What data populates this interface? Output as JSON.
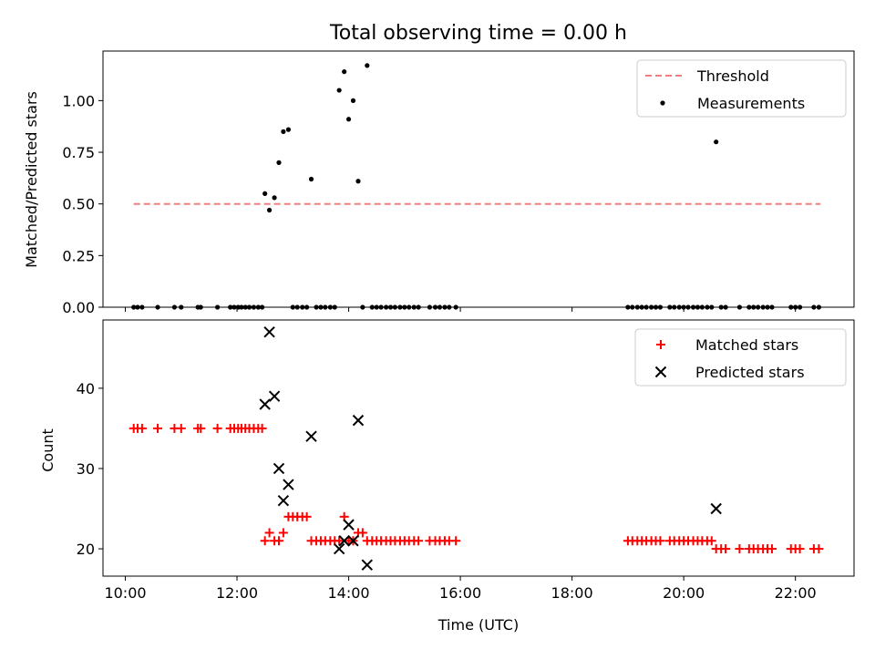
{
  "chart_data": [
    {
      "type": "scatter",
      "title": "Total observing time = 0.00 h",
      "xlabel": "",
      "ylabel": "Matched/Predicted stars",
      "xlim": [
        9.6,
        23.05
      ],
      "ylim": [
        0,
        1.24
      ],
      "yticks": [
        0,
        0.25,
        0.5,
        0.75,
        1.0
      ],
      "ytick_labels": [
        "0.00",
        "0.25",
        "0.50",
        "0.75",
        "1.00"
      ],
      "xticks": [
        10,
        12,
        14,
        16,
        18,
        20,
        22
      ],
      "legend": {
        "placement": "upper-right",
        "entries": [
          "Threshold",
          "Measurements"
        ]
      },
      "threshold": {
        "name": "Threshold",
        "y": 0.5,
        "x_start": 10.15,
        "x_end": 22.45,
        "color": "#f08080"
      },
      "series": [
        {
          "name": "Measurements",
          "color": "#000000",
          "points": [
            [
              12.5,
              0.55
            ],
            [
              12.58,
              0.47
            ],
            [
              12.67,
              0.53
            ],
            [
              12.75,
              0.7
            ],
            [
              12.83,
              0.85
            ],
            [
              12.92,
              0.86
            ],
            [
              13.33,
              0.62
            ],
            [
              13.83,
              1.05
            ],
            [
              13.92,
              1.14
            ],
            [
              14.0,
              0.91
            ],
            [
              14.08,
              1.0
            ],
            [
              14.17,
              0.61
            ],
            [
              14.33,
              1.17
            ],
            [
              20.58,
              0.8
            ],
            [
              10.15,
              0.0
            ],
            [
              10.22,
              0.0
            ],
            [
              10.3,
              0.0
            ],
            [
              10.58,
              0.0
            ],
            [
              10.88,
              0.0
            ],
            [
              11.0,
              0.0
            ],
            [
              11.3,
              0.0
            ],
            [
              11.35,
              0.0
            ],
            [
              11.65,
              0.0
            ],
            [
              11.88,
              0.0
            ],
            [
              11.95,
              0.0
            ],
            [
              12.02,
              0.0
            ],
            [
              12.08,
              0.0
            ],
            [
              12.15,
              0.0
            ],
            [
              12.22,
              0.0
            ],
            [
              12.3,
              0.0
            ],
            [
              12.38,
              0.0
            ],
            [
              12.45,
              0.0
            ],
            [
              13.0,
              0.0
            ],
            [
              13.08,
              0.0
            ],
            [
              13.17,
              0.0
            ],
            [
              13.25,
              0.0
            ],
            [
              13.42,
              0.0
            ],
            [
              13.5,
              0.0
            ],
            [
              13.58,
              0.0
            ],
            [
              13.67,
              0.0
            ],
            [
              13.75,
              0.0
            ],
            [
              14.25,
              0.0
            ],
            [
              14.42,
              0.0
            ],
            [
              14.5,
              0.0
            ],
            [
              14.58,
              0.0
            ],
            [
              14.67,
              0.0
            ],
            [
              14.75,
              0.0
            ],
            [
              14.83,
              0.0
            ],
            [
              14.92,
              0.0
            ],
            [
              15.0,
              0.0
            ],
            [
              15.08,
              0.0
            ],
            [
              15.17,
              0.0
            ],
            [
              15.25,
              0.0
            ],
            [
              15.45,
              0.0
            ],
            [
              15.55,
              0.0
            ],
            [
              15.63,
              0.0
            ],
            [
              15.72,
              0.0
            ],
            [
              15.8,
              0.0
            ],
            [
              15.92,
              0.0
            ],
            [
              19.0,
              0.0
            ],
            [
              19.08,
              0.0
            ],
            [
              19.17,
              0.0
            ],
            [
              19.25,
              0.0
            ],
            [
              19.33,
              0.0
            ],
            [
              19.42,
              0.0
            ],
            [
              19.5,
              0.0
            ],
            [
              19.58,
              0.0
            ],
            [
              19.75,
              0.0
            ],
            [
              19.83,
              0.0
            ],
            [
              19.92,
              0.0
            ],
            [
              20.0,
              0.0
            ],
            [
              20.08,
              0.0
            ],
            [
              20.17,
              0.0
            ],
            [
              20.25,
              0.0
            ],
            [
              20.33,
              0.0
            ],
            [
              20.42,
              0.0
            ],
            [
              20.5,
              0.0
            ],
            [
              20.67,
              0.0
            ],
            [
              20.75,
              0.0
            ],
            [
              21.0,
              0.0
            ],
            [
              21.17,
              0.0
            ],
            [
              21.25,
              0.0
            ],
            [
              21.33,
              0.0
            ],
            [
              21.42,
              0.0
            ],
            [
              21.5,
              0.0
            ],
            [
              21.58,
              0.0
            ],
            [
              21.92,
              0.0
            ],
            [
              22.0,
              0.0
            ],
            [
              22.08,
              0.0
            ],
            [
              22.33,
              0.0
            ],
            [
              22.42,
              0.0
            ]
          ]
        }
      ]
    },
    {
      "type": "scatter",
      "title": "",
      "xlabel": "Time (UTC)",
      "ylabel": "Count",
      "xlim": [
        9.6,
        23.05
      ],
      "ylim": [
        16.6,
        48.5
      ],
      "yticks": [
        20,
        30,
        40
      ],
      "ytick_labels": [
        "20",
        "30",
        "40"
      ],
      "xticks": [
        10,
        12,
        14,
        16,
        18,
        20,
        22
      ],
      "xtick_labels": [
        "10:00",
        "12:00",
        "14:00",
        "16:00",
        "18:00",
        "20:00",
        "22:00"
      ],
      "legend": {
        "placement": "upper-right",
        "entries": [
          "Matched stars",
          "Predicted stars"
        ]
      },
      "series": [
        {
          "name": "Matched stars",
          "marker": "plus",
          "color": "#ff0000",
          "points": [
            [
              10.15,
              35
            ],
            [
              10.22,
              35
            ],
            [
              10.3,
              35
            ],
            [
              10.58,
              35
            ],
            [
              10.88,
              35
            ],
            [
              11.0,
              35
            ],
            [
              11.3,
              35
            ],
            [
              11.35,
              35
            ],
            [
              11.65,
              35
            ],
            [
              11.88,
              35
            ],
            [
              11.95,
              35
            ],
            [
              12.02,
              35
            ],
            [
              12.08,
              35
            ],
            [
              12.15,
              35
            ],
            [
              12.22,
              35
            ],
            [
              12.3,
              35
            ],
            [
              12.38,
              35
            ],
            [
              12.45,
              35
            ],
            [
              12.5,
              21
            ],
            [
              12.58,
              22
            ],
            [
              12.67,
              21
            ],
            [
              12.75,
              21
            ],
            [
              12.83,
              22
            ],
            [
              12.92,
              24
            ],
            [
              13.0,
              24
            ],
            [
              13.08,
              24
            ],
            [
              13.17,
              24
            ],
            [
              13.25,
              24
            ],
            [
              13.33,
              21
            ],
            [
              13.42,
              21
            ],
            [
              13.5,
              21
            ],
            [
              13.58,
              21
            ],
            [
              13.67,
              21
            ],
            [
              13.75,
              21
            ],
            [
              13.83,
              21
            ],
            [
              13.92,
              24
            ],
            [
              14.0,
              21
            ],
            [
              14.08,
              21
            ],
            [
              14.17,
              22
            ],
            [
              14.25,
              22
            ],
            [
              14.33,
              21
            ],
            [
              14.42,
              21
            ],
            [
              14.5,
              21
            ],
            [
              14.58,
              21
            ],
            [
              14.67,
              21
            ],
            [
              14.75,
              21
            ],
            [
              14.83,
              21
            ],
            [
              14.92,
              21
            ],
            [
              15.0,
              21
            ],
            [
              15.08,
              21
            ],
            [
              15.17,
              21
            ],
            [
              15.25,
              21
            ],
            [
              15.45,
              21
            ],
            [
              15.55,
              21
            ],
            [
              15.63,
              21
            ],
            [
              15.72,
              21
            ],
            [
              15.8,
              21
            ],
            [
              15.92,
              21
            ],
            [
              19.0,
              21
            ],
            [
              19.08,
              21
            ],
            [
              19.17,
              21
            ],
            [
              19.25,
              21
            ],
            [
              19.33,
              21
            ],
            [
              19.42,
              21
            ],
            [
              19.5,
              21
            ],
            [
              19.58,
              21
            ],
            [
              19.75,
              21
            ],
            [
              19.83,
              21
            ],
            [
              19.92,
              21
            ],
            [
              20.0,
              21
            ],
            [
              20.08,
              21
            ],
            [
              20.17,
              21
            ],
            [
              20.25,
              21
            ],
            [
              20.33,
              21
            ],
            [
              20.42,
              21
            ],
            [
              20.5,
              21
            ],
            [
              20.58,
              20
            ],
            [
              20.67,
              20
            ],
            [
              20.75,
              20
            ],
            [
              21.0,
              20
            ],
            [
              21.17,
              20
            ],
            [
              21.25,
              20
            ],
            [
              21.33,
              20
            ],
            [
              21.42,
              20
            ],
            [
              21.5,
              20
            ],
            [
              21.58,
              20
            ],
            [
              21.92,
              20
            ],
            [
              22.0,
              20
            ],
            [
              22.08,
              20
            ],
            [
              22.33,
              20
            ],
            [
              22.42,
              20
            ]
          ]
        },
        {
          "name": "Predicted stars",
          "marker": "x",
          "color": "#000000",
          "points": [
            [
              12.5,
              38
            ],
            [
              12.58,
              47
            ],
            [
              12.67,
              39
            ],
            [
              12.75,
              30
            ],
            [
              12.83,
              26
            ],
            [
              12.92,
              28
            ],
            [
              13.33,
              34
            ],
            [
              13.83,
              20
            ],
            [
              13.92,
              21
            ],
            [
              14.0,
              23
            ],
            [
              14.08,
              21
            ],
            [
              14.17,
              36
            ],
            [
              14.33,
              18
            ],
            [
              20.58,
              25
            ]
          ]
        }
      ]
    }
  ]
}
